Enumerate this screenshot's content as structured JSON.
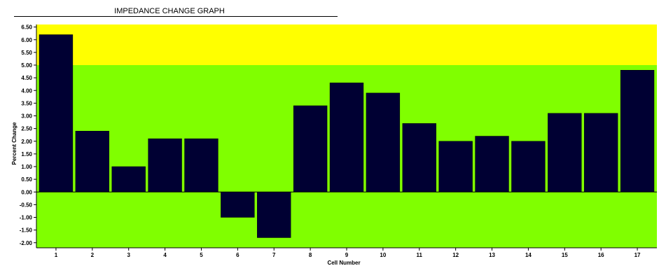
{
  "chart_data": {
    "type": "bar",
    "title": "IMPEDANCE CHANGE GRAPH",
    "xlabel": "Cell Number",
    "ylabel": "Percent Change",
    "categories": [
      "1",
      "2",
      "3",
      "4",
      "5",
      "6",
      "7",
      "8",
      "9",
      "10",
      "11",
      "12",
      "13",
      "14",
      "15",
      "16",
      "17"
    ],
    "values": [
      6.2,
      2.4,
      1.0,
      2.1,
      2.1,
      -1.0,
      -1.8,
      3.4,
      4.3,
      3.9,
      2.7,
      2.0,
      2.2,
      2.0,
      3.1,
      3.1,
      4.8
    ],
    "ylim": [
      -2.2,
      6.6
    ],
    "yticks": [
      "6.50",
      "6.00",
      "5.50",
      "5.00",
      "4.50",
      "4.00",
      "3.50",
      "3.00",
      "2.50",
      "2.00",
      "1.50",
      "1.00",
      "0.50",
      "0.00",
      "-0.50",
      "-1.00",
      "-1.50",
      "-2.00"
    ],
    "zones": [
      {
        "from": 5.0,
        "to": 6.6,
        "color": "#ffff00"
      },
      {
        "from": -2.2,
        "to": 5.0,
        "color": "#80ff00"
      }
    ],
    "bar_color": "#000033",
    "grid": false
  }
}
